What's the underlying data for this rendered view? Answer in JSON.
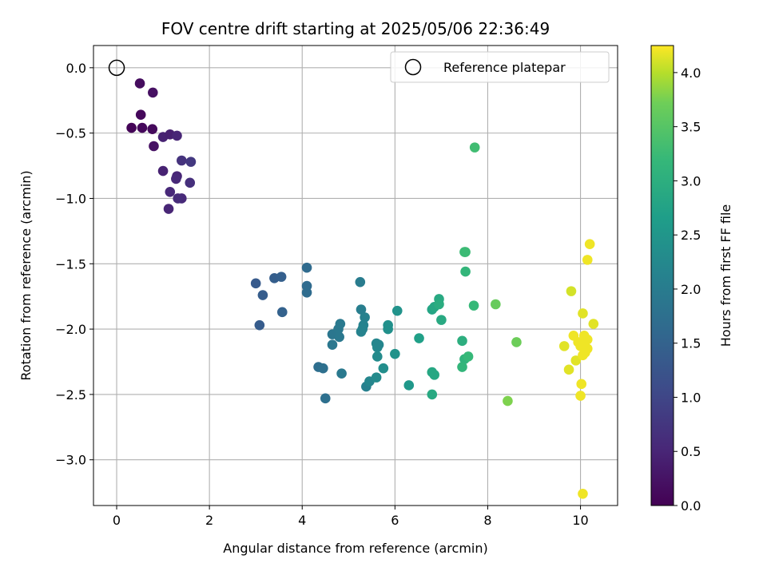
{
  "chart_data": {
    "type": "scatter",
    "title": "FOV centre drift starting at 2025/05/06 22:36:49",
    "xlabel": "Angular distance from reference (arcmin)",
    "ylabel": "Rotation from reference (arcmin)",
    "xlim": [
      -0.5,
      10.8
    ],
    "ylim": [
      -3.35,
      0.17
    ],
    "xticks": [
      0,
      2,
      4,
      6,
      8,
      10
    ],
    "yticks": [
      0.0,
      -0.5,
      -1.0,
      -1.5,
      -2.0,
      -2.5,
      -3.0
    ],
    "xtick_labels": [
      "0",
      "2",
      "4",
      "6",
      "8",
      "10"
    ],
    "ytick_labels": [
      "0.0",
      "−0.5",
      "−1.0",
      "−1.5",
      "−2.0",
      "−2.5",
      "−3.0"
    ],
    "grid": true,
    "legend": {
      "placement": "top-right",
      "entries": [
        "Reference platepar"
      ]
    },
    "reference": {
      "name": "Reference platepar",
      "x": 0,
      "y": 0
    },
    "colorbar": {
      "label": "Hours from first FF file",
      "range": [
        0.0,
        4.25
      ],
      "ticks": [
        0.0,
        0.5,
        1.0,
        1.5,
        2.0,
        2.5,
        3.0,
        3.5,
        4.0
      ],
      "tick_labels": [
        "0.0",
        "0.5",
        "1.0",
        "1.5",
        "2.0",
        "2.5",
        "3.0",
        "3.5",
        "4.0"
      ],
      "colormap": "viridis"
    },
    "series": {
      "x": [
        0.32,
        0.52,
        0.77,
        0.5,
        0.55,
        0.78,
        0.8,
        1.0,
        1.15,
        1.3,
        1.4,
        1.6,
        1.0,
        1.3,
        1.28,
        1.58,
        1.15,
        1.4,
        1.32,
        1.12,
        3.0,
        3.4,
        3.55,
        3.15,
        3.08,
        3.57,
        4.1,
        4.1,
        4.1,
        4.35,
        4.45,
        4.5,
        4.65,
        4.65,
        4.8,
        4.78,
        4.82,
        4.85,
        5.25,
        5.27,
        5.35,
        5.32,
        5.27,
        5.3,
        5.38,
        5.45,
        5.6,
        5.62,
        5.62,
        5.65,
        5.6,
        5.75,
        5.85,
        5.85,
        6.0,
        6.05,
        6.3,
        6.52,
        6.8,
        6.85,
        6.95,
        6.95,
        7.0,
        6.8,
        6.85,
        6.8,
        7.45,
        7.5,
        7.5,
        7.52,
        7.58,
        7.45,
        7.7,
        7.72,
        7.52,
        8.17,
        8.62,
        8.43,
        9.65,
        9.8,
        9.75,
        9.85,
        9.9,
        9.95,
        10.0,
        10.05,
        10.02,
        10.0,
        10.1,
        10.15,
        10.1,
        10.15,
        10.05,
        10.05,
        10.2,
        10.28,
        10.15,
        10.08
      ],
      "y": [
        -0.46,
        -0.36,
        -0.47,
        -0.12,
        -0.46,
        -0.19,
        -0.6,
        -0.53,
        -0.51,
        -0.52,
        -0.71,
        -0.72,
        -0.79,
        -0.83,
        -0.85,
        -0.88,
        -0.95,
        -1.0,
        -1.0,
        -1.08,
        -1.65,
        -1.61,
        -1.6,
        -1.74,
        -1.97,
        -1.87,
        -1.53,
        -1.67,
        -1.72,
        -2.29,
        -2.3,
        -2.53,
        -2.04,
        -2.12,
        -2.06,
        -2.0,
        -1.96,
        -2.34,
        -1.64,
        -1.85,
        -1.91,
        -1.97,
        -2.02,
        -2.0,
        -2.44,
        -2.4,
        -2.11,
        -2.14,
        -2.21,
        -2.12,
        -2.37,
        -2.3,
        -1.97,
        -2.0,
        -2.19,
        -1.86,
        -2.43,
        -2.07,
        -1.85,
        -1.83,
        -1.77,
        -1.81,
        -1.93,
        -2.33,
        -2.35,
        -2.5,
        -2.09,
        -2.23,
        -1.41,
        -1.56,
        -2.21,
        -2.29,
        -1.82,
        -0.61,
        -1.41,
        -1.81,
        -2.1,
        -2.55,
        -2.13,
        -1.71,
        -2.31,
        -2.05,
        -2.24,
        -2.1,
        -2.13,
        -1.88,
        -2.42,
        -2.51,
        -2.14,
        -2.08,
        -2.18,
        -2.15,
        -2.2,
        -3.26,
        -1.35,
        -1.96,
        -1.47,
        -2.05
      ],
      "c": [
        0.05,
        0.1,
        0.12,
        0.15,
        0.1,
        0.2,
        0.22,
        0.45,
        0.42,
        0.5,
        0.7,
        0.78,
        0.45,
        0.5,
        0.55,
        0.65,
        0.55,
        0.55,
        0.6,
        0.5,
        1.35,
        1.42,
        1.45,
        1.4,
        1.38,
        1.48,
        1.65,
        1.65,
        1.68,
        1.72,
        1.75,
        1.75,
        1.88,
        1.9,
        1.92,
        1.92,
        1.95,
        1.95,
        2.0,
        2.05,
        2.1,
        2.12,
        2.15,
        2.15,
        2.08,
        2.2,
        2.2,
        2.25,
        2.3,
        2.2,
        2.3,
        2.35,
        2.4,
        2.4,
        2.45,
        2.45,
        2.55,
        2.7,
        2.8,
        2.85,
        2.9,
        2.95,
        2.9,
        2.85,
        2.85,
        2.9,
        3.0,
        3.1,
        3.25,
        3.15,
        3.2,
        3.15,
        3.2,
        3.3,
        3.25,
        3.65,
        3.7,
        3.78,
        4.15,
        4.1,
        4.15,
        4.2,
        4.15,
        4.2,
        4.2,
        4.15,
        4.2,
        4.2,
        4.2,
        4.2,
        4.2,
        4.2,
        4.2,
        4.2,
        4.2,
        4.15,
        4.2,
        4.2
      ]
    }
  }
}
